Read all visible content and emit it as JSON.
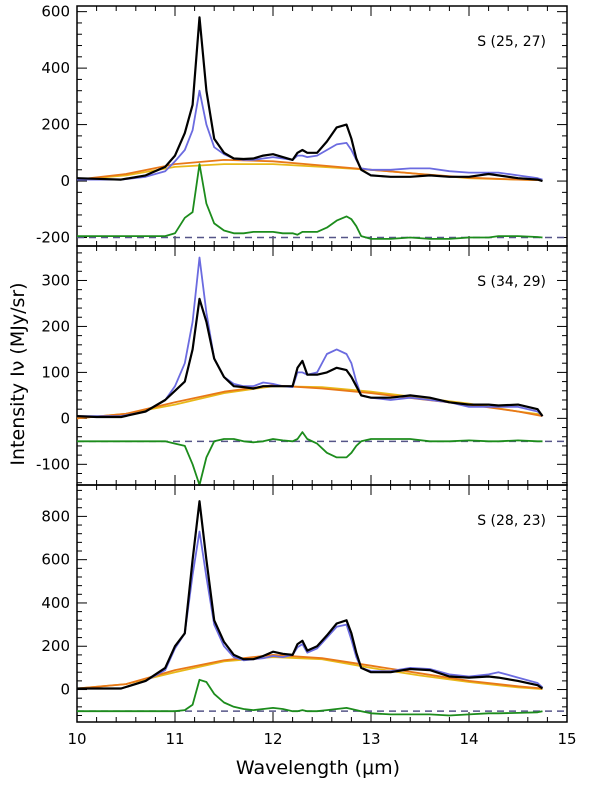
{
  "figure": {
    "xlabel": "Wavelength (μm)",
    "ylabel": "Intensity Iν (MJy/sr)"
  },
  "chart_data": [
    {
      "type": "line",
      "label": "S (25, 27)",
      "xlim": [
        10,
        15
      ],
      "ylim": [
        -230,
        620
      ],
      "yticks": [
        -200,
        0,
        200,
        400,
        600
      ],
      "xticks": [
        10,
        11,
        12,
        13,
        14,
        15
      ],
      "baseline": -200,
      "series": [
        {
          "color": "#000000",
          "x": [
            10,
            10.2,
            10.45,
            10.7,
            10.9,
            11.0,
            11.1,
            11.18,
            11.25,
            11.32,
            11.4,
            11.5,
            11.6,
            11.7,
            11.8,
            11.9,
            12.0,
            12.1,
            12.2,
            12.25,
            12.3,
            12.35,
            12.45,
            12.55,
            12.65,
            12.75,
            12.8,
            12.85,
            12.9,
            13.0,
            13.2,
            13.4,
            13.6,
            13.8,
            14.0,
            14.2,
            14.3,
            14.5,
            14.7,
            14.75
          ],
          "y": [
            10,
            8,
            5,
            20,
            50,
            90,
            170,
            270,
            580,
            320,
            150,
            100,
            80,
            78,
            80,
            90,
            95,
            85,
            75,
            100,
            110,
            100,
            100,
            140,
            190,
            200,
            150,
            80,
            40,
            20,
            15,
            15,
            20,
            15,
            15,
            25,
            20,
            10,
            5,
            0
          ]
        },
        {
          "color": "#6b6be0",
          "x": [
            10,
            10.2,
            10.45,
            10.7,
            10.9,
            11.0,
            11.1,
            11.18,
            11.25,
            11.32,
            11.4,
            11.5,
            11.6,
            11.7,
            11.8,
            11.9,
            12.0,
            12.1,
            12.2,
            12.25,
            12.3,
            12.35,
            12.45,
            12.55,
            12.65,
            12.75,
            12.8,
            12.85,
            12.9,
            13.0,
            13.2,
            13.4,
            13.6,
            13.8,
            14.0,
            14.2,
            14.3,
            14.5,
            14.7,
            14.75
          ],
          "y": [
            5,
            5,
            5,
            15,
            35,
            70,
            110,
            180,
            320,
            200,
            120,
            95,
            80,
            75,
            75,
            80,
            85,
            80,
            75,
            90,
            90,
            85,
            90,
            110,
            130,
            135,
            110,
            75,
            45,
            40,
            40,
            45,
            45,
            35,
            30,
            30,
            30,
            20,
            10,
            5
          ]
        },
        {
          "color": "#e8b818",
          "x": [
            10,
            10.5,
            11,
            11.5,
            12,
            12.5,
            13,
            13.5,
            14,
            14.5,
            14.75
          ],
          "y": [
            5,
            20,
            50,
            60,
            60,
            50,
            40,
            25,
            10,
            5,
            3
          ]
        },
        {
          "color": "#e87818",
          "x": [
            10,
            10.5,
            11,
            11.5,
            12,
            12.5,
            13,
            13.5,
            14,
            14.5,
            14.75
          ],
          "y": [
            5,
            25,
            60,
            75,
            70,
            55,
            40,
            25,
            12,
            5,
            3
          ]
        },
        {
          "color": "#1c8c1c",
          "x": [
            10,
            10.2,
            10.45,
            10.7,
            10.9,
            11.0,
            11.1,
            11.18,
            11.25,
            11.32,
            11.4,
            11.5,
            11.6,
            11.7,
            11.8,
            11.9,
            12.0,
            12.1,
            12.2,
            12.25,
            12.3,
            12.35,
            12.45,
            12.55,
            12.65,
            12.75,
            12.8,
            12.85,
            12.9,
            13.0,
            13.2,
            13.4,
            13.6,
            13.8,
            14.0,
            14.2,
            14.3,
            14.5,
            14.7,
            14.75
          ],
          "y": [
            -195,
            -195,
            -195,
            -195,
            -195,
            -185,
            -130,
            -110,
            60,
            -80,
            -150,
            -175,
            -185,
            -185,
            -180,
            -180,
            -180,
            -185,
            -185,
            -190,
            -180,
            -180,
            -180,
            -165,
            -140,
            -125,
            -135,
            -160,
            -195,
            -205,
            -205,
            -200,
            -205,
            -205,
            -200,
            -200,
            -195,
            -195,
            -198,
            -200
          ]
        }
      ]
    },
    {
      "type": "line",
      "label": "S (34, 29)",
      "xlim": [
        10,
        15
      ],
      "ylim": [
        -145,
        375
      ],
      "yticks": [
        -100,
        0,
        100,
        200,
        300
      ],
      "xticks": [
        10,
        11,
        12,
        13,
        14,
        15
      ],
      "baseline": -50,
      "series": [
        {
          "color": "#000000",
          "x": [
            10,
            10.2,
            10.45,
            10.7,
            10.9,
            11.0,
            11.1,
            11.18,
            11.25,
            11.32,
            11.4,
            11.5,
            11.6,
            11.7,
            11.8,
            11.9,
            12.0,
            12.1,
            12.2,
            12.25,
            12.3,
            12.35,
            12.45,
            12.55,
            12.65,
            12.75,
            12.8,
            12.85,
            12.9,
            13.0,
            13.2,
            13.4,
            13.6,
            13.8,
            14.0,
            14.2,
            14.3,
            14.5,
            14.7,
            14.75
          ],
          "y": [
            5,
            3,
            3,
            15,
            40,
            60,
            80,
            150,
            260,
            210,
            130,
            90,
            70,
            68,
            65,
            70,
            70,
            70,
            70,
            110,
            125,
            95,
            95,
            100,
            110,
            105,
            90,
            70,
            50,
            45,
            45,
            50,
            45,
            35,
            30,
            30,
            28,
            30,
            20,
            5
          ]
        },
        {
          "color": "#6b6be0",
          "x": [
            10,
            10.2,
            10.45,
            10.7,
            10.9,
            11.0,
            11.1,
            11.18,
            11.25,
            11.32,
            11.4,
            11.5,
            11.6,
            11.7,
            11.8,
            11.9,
            12.0,
            12.1,
            12.2,
            12.25,
            12.3,
            12.35,
            12.45,
            12.55,
            12.65,
            12.75,
            12.8,
            12.85,
            12.9,
            13.0,
            13.2,
            13.4,
            13.6,
            13.8,
            14.0,
            14.2,
            14.3,
            14.5,
            14.7,
            14.75
          ],
          "y": [
            5,
            5,
            5,
            15,
            40,
            70,
            120,
            210,
            350,
            230,
            130,
            90,
            75,
            70,
            70,
            78,
            75,
            70,
            68,
            100,
            100,
            95,
            100,
            140,
            150,
            140,
            120,
            80,
            50,
            45,
            40,
            45,
            40,
            35,
            25,
            25,
            25,
            25,
            15,
            5
          ]
        },
        {
          "color": "#e8b818",
          "x": [
            10,
            10.5,
            11,
            11.5,
            12,
            12.5,
            13,
            13.5,
            14,
            14.5,
            14.75
          ],
          "y": [
            0,
            10,
            30,
            55,
            70,
            68,
            58,
            45,
            32,
            15,
            8
          ]
        },
        {
          "color": "#e87818",
          "x": [
            10,
            10.5,
            11,
            11.5,
            12,
            12.5,
            13,
            13.5,
            14,
            14.5,
            14.75
          ],
          "y": [
            0,
            10,
            35,
            58,
            72,
            65,
            55,
            42,
            30,
            15,
            5
          ]
        },
        {
          "color": "#1c8c1c",
          "x": [
            10,
            10.2,
            10.45,
            10.7,
            10.9,
            11.0,
            11.1,
            11.18,
            11.25,
            11.32,
            11.4,
            11.5,
            11.6,
            11.7,
            11.8,
            11.9,
            12.0,
            12.1,
            12.2,
            12.25,
            12.3,
            12.35,
            12.45,
            12.55,
            12.65,
            12.75,
            12.8,
            12.85,
            12.9,
            13.0,
            13.2,
            13.4,
            13.6,
            13.8,
            14.0,
            14.2,
            14.3,
            14.5,
            14.7,
            14.75
          ],
          "y": [
            -50,
            -50,
            -50,
            -50,
            -50,
            -55,
            -60,
            -100,
            -145,
            -85,
            -50,
            -45,
            -45,
            -50,
            -52,
            -50,
            -45,
            -48,
            -50,
            -45,
            -30,
            -45,
            -55,
            -75,
            -85,
            -85,
            -75,
            -60,
            -50,
            -45,
            -45,
            -45,
            -50,
            -50,
            -48,
            -50,
            -50,
            -48,
            -50,
            -50
          ]
        }
      ]
    },
    {
      "type": "line",
      "label": "S (28, 23)",
      "xlim": [
        10,
        15
      ],
      "ylim": [
        -150,
        945
      ],
      "yticks": [
        0,
        200,
        400,
        600,
        800
      ],
      "xticks": [
        10,
        11,
        12,
        13,
        14,
        15
      ],
      "baseline": -100,
      "series": [
        {
          "color": "#000000",
          "x": [
            10,
            10.2,
            10.45,
            10.7,
            10.9,
            11.0,
            11.1,
            11.18,
            11.25,
            11.32,
            11.4,
            11.5,
            11.6,
            11.7,
            11.8,
            11.9,
            12.0,
            12.1,
            12.2,
            12.25,
            12.3,
            12.35,
            12.45,
            12.55,
            12.65,
            12.75,
            12.8,
            12.85,
            12.9,
            13.0,
            13.2,
            13.4,
            13.6,
            13.8,
            14.0,
            14.2,
            14.3,
            14.5,
            14.7,
            14.75
          ],
          "y": [
            5,
            5,
            5,
            40,
            100,
            200,
            260,
            600,
            870,
            600,
            320,
            220,
            160,
            140,
            140,
            155,
            175,
            165,
            160,
            210,
            225,
            180,
            200,
            250,
            305,
            320,
            260,
            170,
            100,
            80,
            80,
            95,
            90,
            60,
            55,
            60,
            55,
            40,
            20,
            5
          ]
        },
        {
          "color": "#6b6be0",
          "x": [
            10,
            10.2,
            10.45,
            10.7,
            10.9,
            11.0,
            11.1,
            11.18,
            11.25,
            11.32,
            11.4,
            11.5,
            11.6,
            11.7,
            11.8,
            11.9,
            12.0,
            12.1,
            12.2,
            12.25,
            12.3,
            12.35,
            12.45,
            12.55,
            12.65,
            12.75,
            12.8,
            12.85,
            12.9,
            13.0,
            13.2,
            13.4,
            13.6,
            13.8,
            14.0,
            14.2,
            14.3,
            14.5,
            14.7,
            14.75
          ],
          "y": [
            5,
            5,
            5,
            40,
            90,
            190,
            260,
            530,
            730,
            520,
            300,
            200,
            150,
            135,
            140,
            145,
            155,
            150,
            160,
            195,
            210,
            170,
            190,
            240,
            290,
            300,
            230,
            150,
            100,
            85,
            85,
            100,
            95,
            70,
            60,
            70,
            80,
            55,
            30,
            10
          ]
        },
        {
          "color": "#e8b818",
          "x": [
            10,
            10.5,
            11,
            11.5,
            12,
            12.5,
            13,
            13.5,
            14,
            14.5,
            14.75
          ],
          "y": [
            5,
            25,
            80,
            130,
            150,
            140,
            100,
            65,
            35,
            10,
            2
          ]
        },
        {
          "color": "#e87818",
          "x": [
            10,
            10.5,
            11,
            11.5,
            12,
            12.5,
            13,
            13.5,
            14,
            14.5,
            14.75
          ],
          "y": [
            5,
            25,
            90,
            135,
            160,
            145,
            110,
            75,
            40,
            15,
            5
          ]
        },
        {
          "color": "#1c8c1c",
          "x": [
            10,
            10.2,
            10.45,
            10.7,
            10.9,
            11.0,
            11.1,
            11.18,
            11.25,
            11.32,
            11.4,
            11.5,
            11.6,
            11.7,
            11.8,
            11.9,
            12.0,
            12.1,
            12.2,
            12.25,
            12.3,
            12.35,
            12.45,
            12.55,
            12.65,
            12.75,
            12.8,
            12.85,
            12.9,
            13.0,
            13.2,
            13.4,
            13.6,
            13.8,
            14.0,
            14.2,
            14.3,
            14.5,
            14.7,
            14.75
          ],
          "y": [
            -100,
            -100,
            -100,
            -100,
            -100,
            -100,
            -95,
            -70,
            45,
            35,
            -20,
            -60,
            -80,
            -90,
            -95,
            -90,
            -85,
            -90,
            -100,
            -100,
            -95,
            -100,
            -100,
            -95,
            -90,
            -85,
            -90,
            -95,
            -100,
            -110,
            -115,
            -115,
            -115,
            -120,
            -115,
            -110,
            -110,
            -108,
            -105,
            -100
          ]
        }
      ]
    }
  ]
}
